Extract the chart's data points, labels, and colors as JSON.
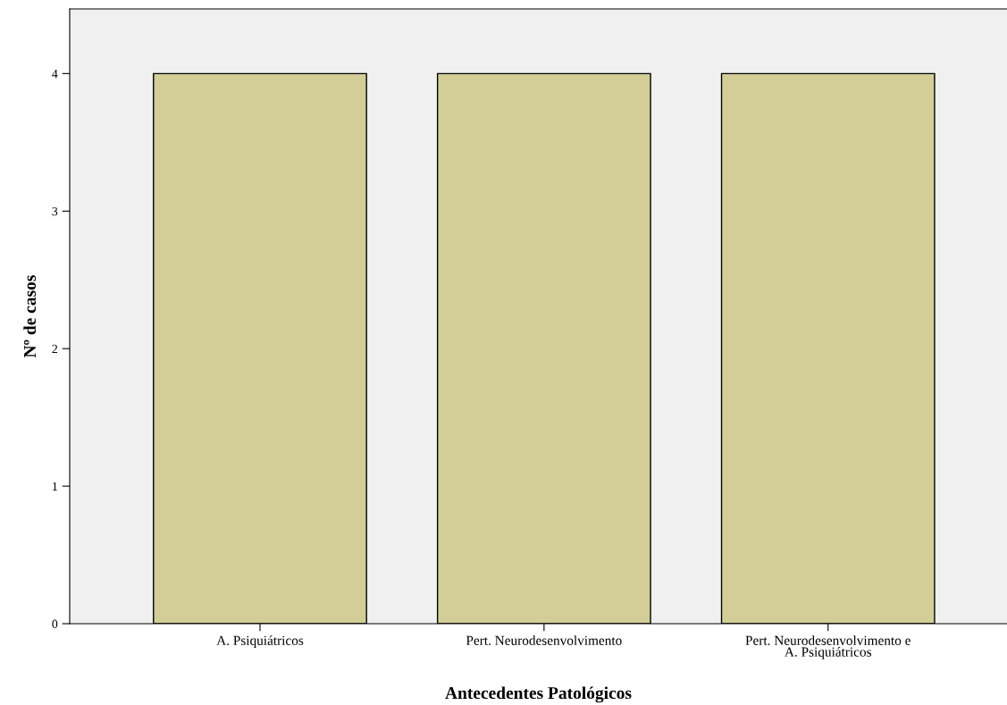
{
  "chart_data": {
    "type": "bar",
    "xlabel": "Antecedentes Patológicos",
    "ylabel": "Nº de casos",
    "categories": [
      "A. Psiquiátricos",
      "Pert. Neurodesenvolvimento",
      "Pert. Neurodesenvolvimento e\nA. Psiquiátricos"
    ],
    "values": [
      4,
      4,
      4
    ],
    "color": "#d3ce97",
    "ylim": [
      0,
      4.47
    ],
    "yticks": [
      0,
      1,
      2,
      3,
      4
    ],
    "grid": false
  }
}
